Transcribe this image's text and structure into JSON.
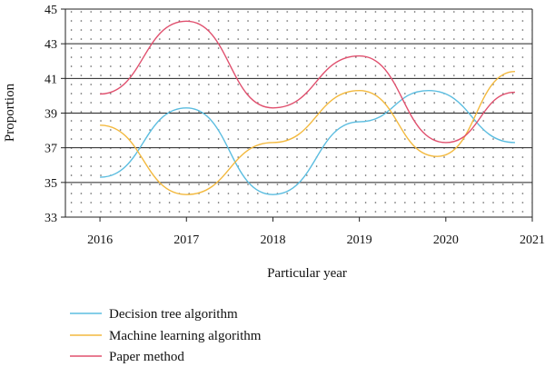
{
  "chart_data": {
    "type": "line",
    "xlabel": "Particular year",
    "ylabel": "Proportion",
    "xlim": [
      2015.6,
      2021.0
    ],
    "ylim": [
      33,
      45
    ],
    "x_ticks": [
      2016,
      2017,
      2018,
      2019,
      2020,
      2021
    ],
    "y_ticks": [
      33,
      35,
      37,
      39,
      41,
      43,
      45
    ],
    "grid": "horizontal lines at major ticks, dotted fill",
    "legend_position": "bottom-left",
    "series": [
      {
        "name": "Decision tree algorithm",
        "color": "#5bbde0",
        "x": [
          2016.0,
          2017.0,
          2018.0,
          2019.0,
          2019.8,
          2020.8
        ],
        "y": [
          35.3,
          39.3,
          34.3,
          38.5,
          40.3,
          37.3
        ]
      },
      {
        "name": "Machine learning algorithm",
        "color": "#f3b93e",
        "x": [
          2016.0,
          2017.0,
          2018.0,
          2019.0,
          2019.9,
          2020.8
        ],
        "y": [
          38.3,
          34.3,
          37.3,
          40.3,
          36.5,
          41.4
        ]
      },
      {
        "name": "Paper method",
        "color": "#e0506e",
        "x": [
          2016.0,
          2017.0,
          2018.0,
          2019.0,
          2020.0,
          2020.8
        ],
        "y": [
          40.1,
          44.3,
          39.3,
          42.3,
          37.3,
          40.2
        ]
      }
    ]
  }
}
